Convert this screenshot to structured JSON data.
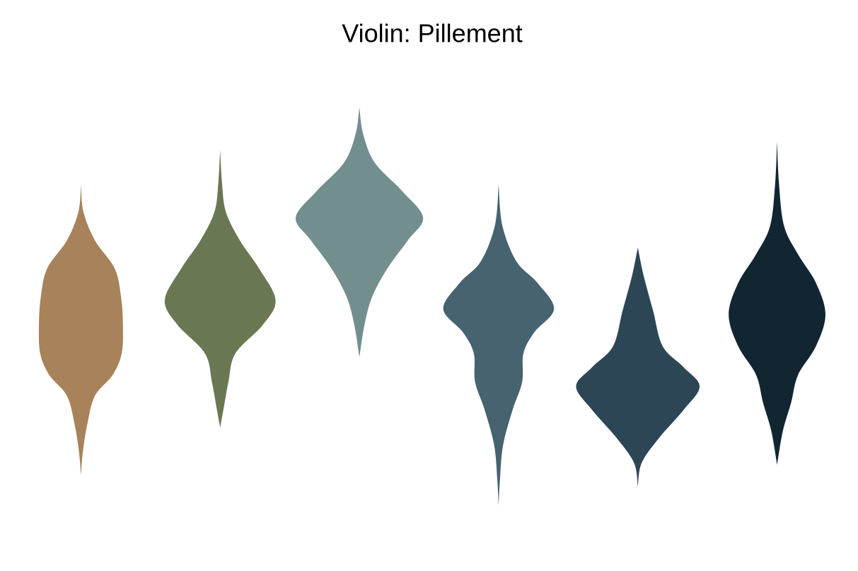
{
  "chart_data": {
    "type": "violin",
    "title": "Violin: Pillement",
    "ylim": [
      0,
      10
    ],
    "grid": false,
    "series": [
      {
        "color": "#A7825A",
        "y": [
          7.55,
          6.97,
          6.36,
          5.76,
          5.15,
          4.55,
          3.94,
          3.48,
          3.03,
          2.42,
          1.82,
          1.33
        ],
        "density": [
          0,
          0.04,
          0.22,
          0.53,
          0.63,
          0.66,
          0.64,
          0.5,
          0.22,
          0.1,
          0.03,
          0
        ]
      },
      {
        "color": "#6A7753",
        "y": [
          8.3,
          7.58,
          6.97,
          6.36,
          5.76,
          5.08,
          4.55,
          3.94,
          3.33,
          2.8,
          2.35
        ],
        "density": [
          0,
          0.03,
          0.09,
          0.31,
          0.61,
          0.87,
          0.67,
          0.24,
          0.13,
          0.06,
          0
        ]
      },
      {
        "color": "#738E8E",
        "y": [
          9.21,
          8.64,
          8.03,
          7.42,
          6.85,
          6.36,
          5.76,
          5.15,
          4.55,
          3.86
        ],
        "density": [
          0,
          0.06,
          0.24,
          0.67,
          1,
          0.76,
          0.44,
          0.2,
          0.08,
          0
        ]
      },
      {
        "color": "#46636F",
        "y": [
          7.55,
          6.67,
          5.91,
          5.45,
          4.89,
          4.39,
          3.94,
          3.33,
          2.73,
          1.97,
          1.21,
          0.68
        ],
        "density": [
          0,
          0.06,
          0.28,
          0.61,
          0.87,
          0.56,
          0.39,
          0.37,
          0.22,
          0.07,
          0.02,
          0
        ]
      },
      {
        "color": "#2C4656",
        "y": [
          6.21,
          5.61,
          4.85,
          4.09,
          3.64,
          3.23,
          2.73,
          2.12,
          1.59,
          1.09
        ],
        "density": [
          0,
          0.09,
          0.24,
          0.39,
          0.72,
          0.97,
          0.72,
          0.33,
          0.06,
          0
        ]
      },
      {
        "color": "#112631",
        "y": [
          8.48,
          7.58,
          6.67,
          6.06,
          5.45,
          4.77,
          4.09,
          3.48,
          2.88,
          2.27,
          1.55
        ],
        "density": [
          0,
          0.03,
          0.11,
          0.33,
          0.61,
          0.76,
          0.61,
          0.33,
          0.22,
          0.09,
          0
        ]
      }
    ]
  }
}
